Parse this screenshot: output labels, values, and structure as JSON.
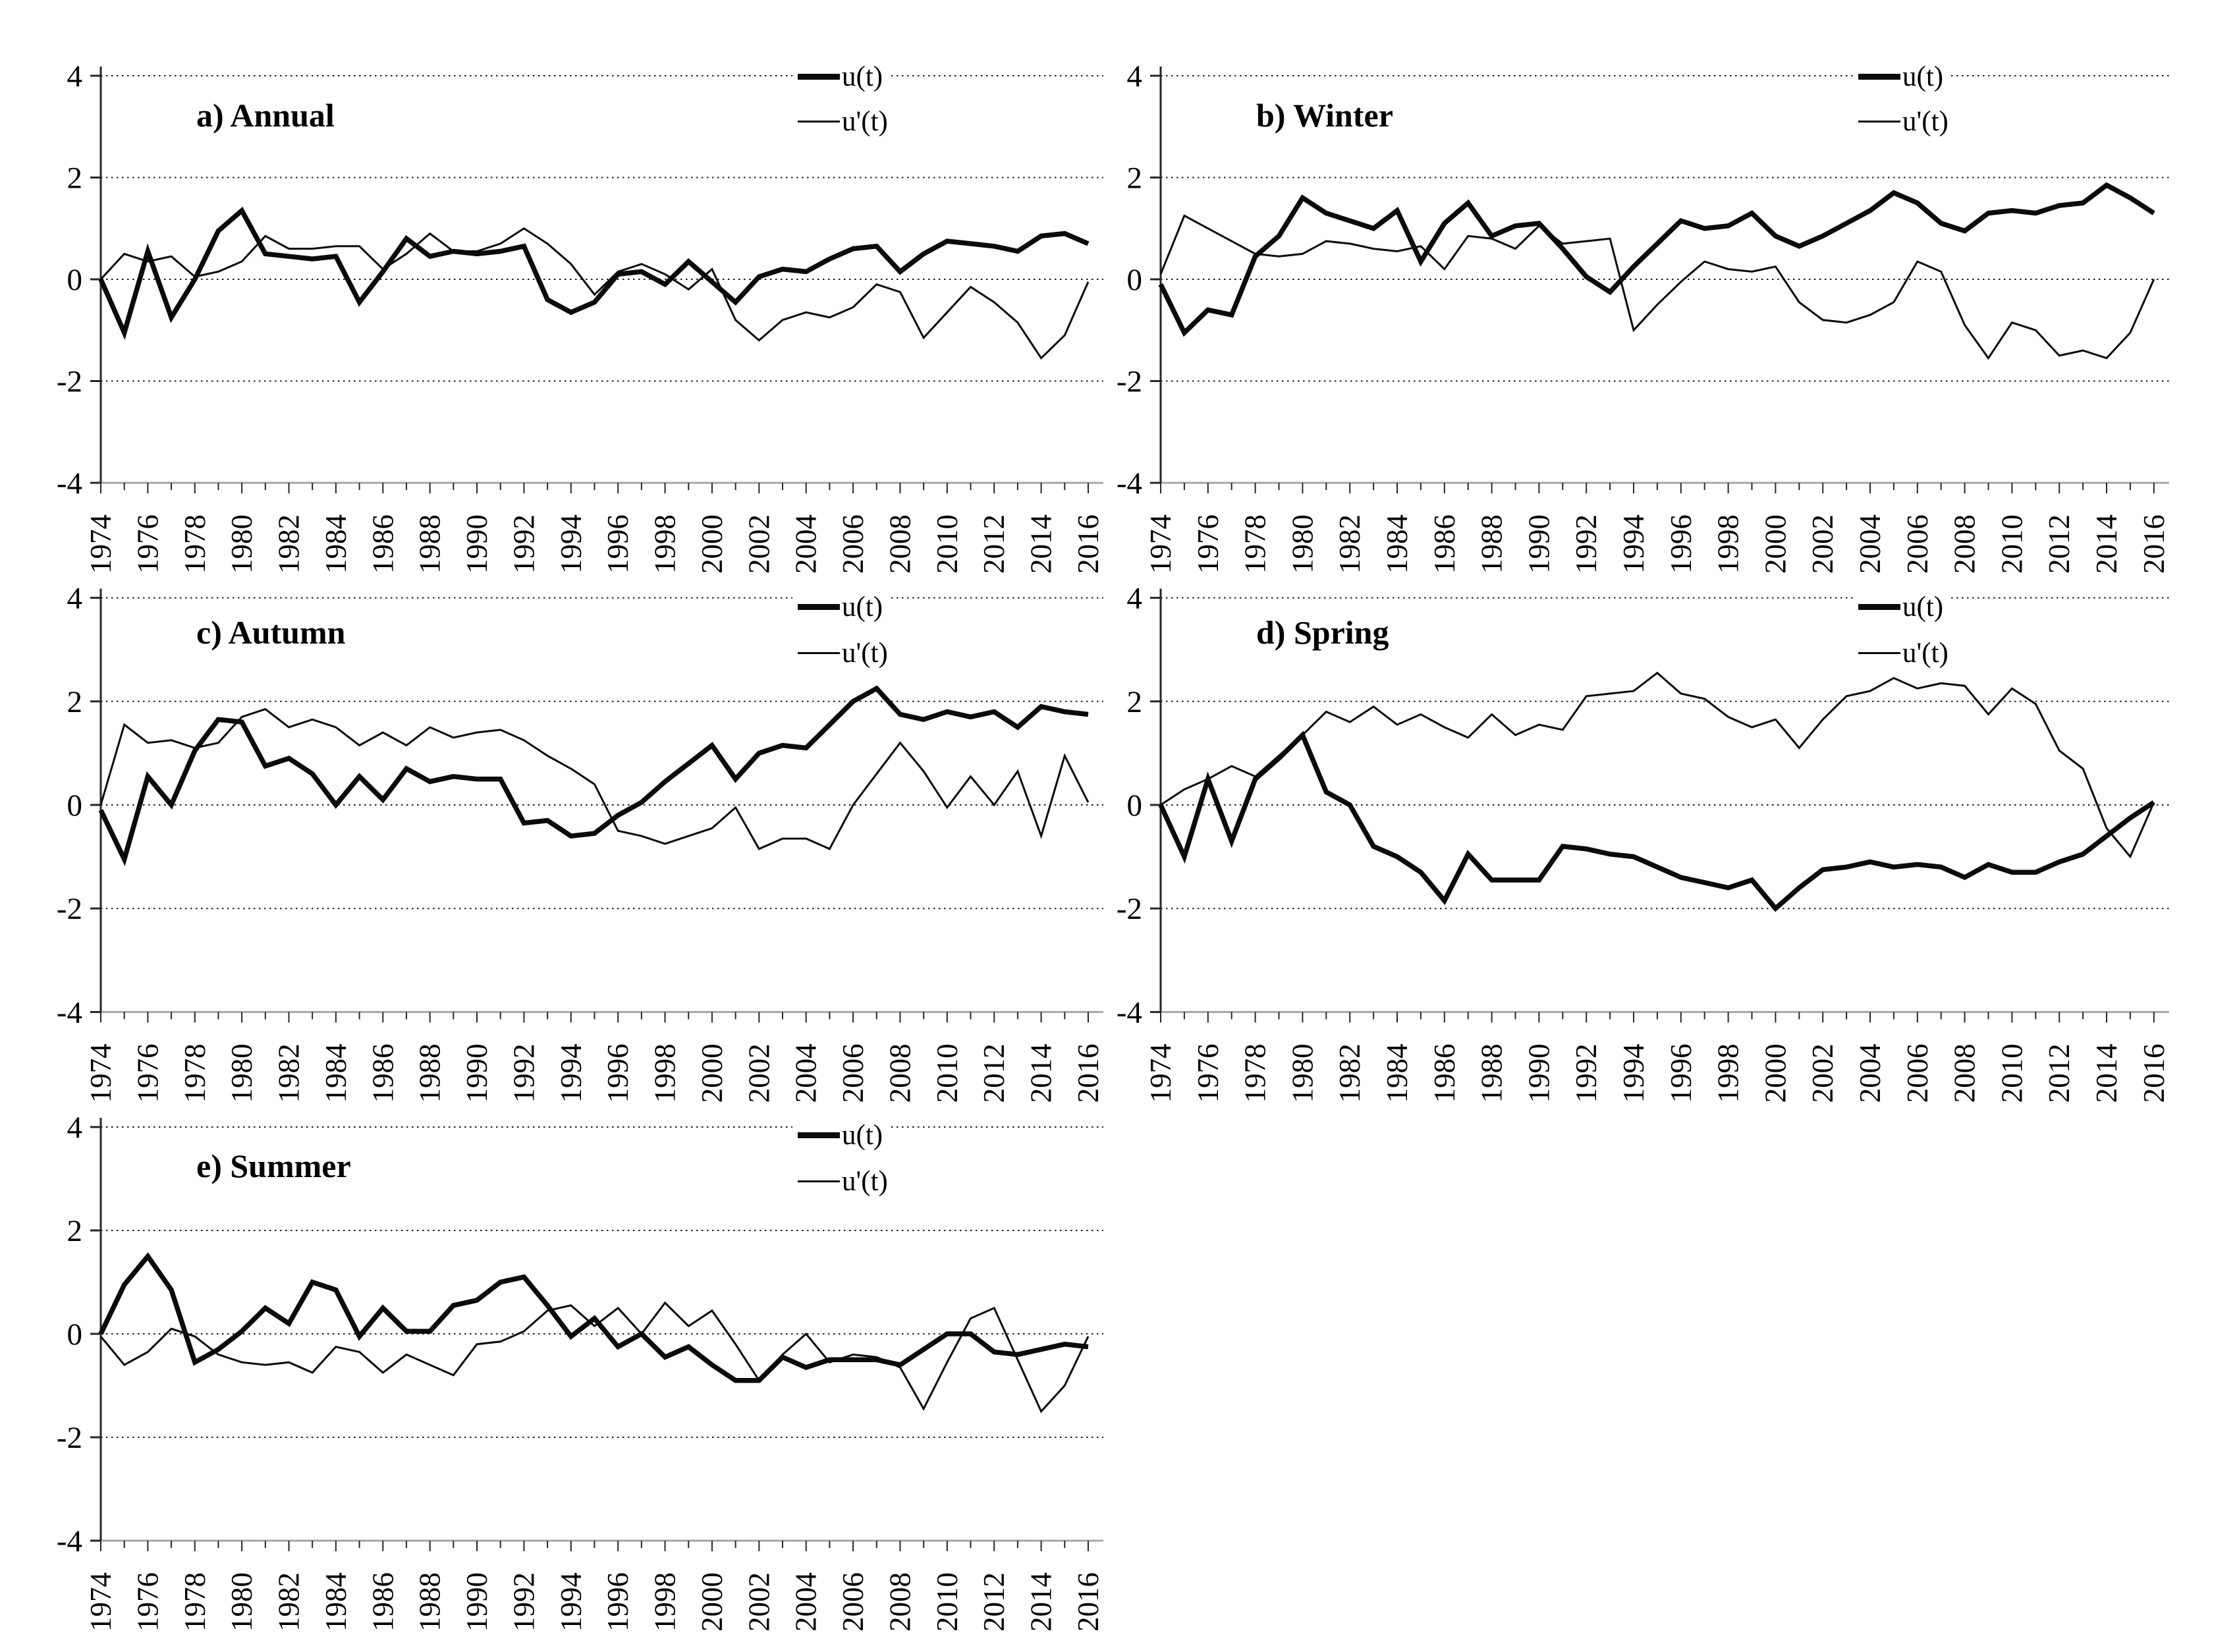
{
  "page": {
    "background": "#ffffff",
    "text_color": "#000000"
  },
  "chart_data": {
    "type": "line",
    "figure_description": "Five panels of standardized anomaly time series, two series per panel",
    "x_range": [
      1974,
      2016
    ],
    "x_step": 1,
    "x_tick_labels": [
      "1974",
      "1976",
      "1978",
      "1980",
      "1982",
      "1984",
      "1986",
      "1988",
      "1990",
      "1992",
      "1994",
      "1996",
      "1998",
      "2000",
      "2002",
      "2004",
      "2006",
      "2008",
      "2010",
      "2012",
      "2014",
      "2016"
    ],
    "ylim": [
      -4,
      4
    ],
    "yticks": [
      4,
      2,
      0,
      -2,
      -4
    ],
    "grid": "horizontal dotted lines at 4, 2, 0, -2; solid gray baseline at -4",
    "legend": [
      "u(t)",
      "u'(t)"
    ],
    "legend_position": "top-center-right of each panel",
    "series_styles": {
      "u(t)": "thick black line",
      "u'(t)": "thin black line"
    },
    "panels": [
      {
        "label": "a) Annual",
        "ut": [
          0,
          -1.05,
          0.55,
          -0.75,
          0,
          0.95,
          1.35,
          0.5,
          0.45,
          0.4,
          0.45,
          -0.45,
          0.15,
          0.8,
          0.45,
          0.55,
          0.5,
          0.55,
          0.65,
          -0.4,
          -0.65,
          -0.45,
          0.1,
          0.15,
          -0.1,
          0.35,
          -0.05,
          -0.45,
          0.05,
          0.2,
          0.15,
          0.4,
          0.6,
          0.65,
          0.15,
          0.5,
          0.75,
          0.7,
          0.65,
          0.55,
          0.85,
          0.9,
          0.7
        ],
        "upt": [
          0,
          0.5,
          0.35,
          0.45,
          0.05,
          0.15,
          0.35,
          0.85,
          0.6,
          0.6,
          0.65,
          0.65,
          0.2,
          0.5,
          0.9,
          0.55,
          0.55,
          0.7,
          1,
          0.7,
          0.3,
          -0.3,
          0.15,
          0.3,
          0.1,
          -0.2,
          0.2,
          -0.8,
          -1.2,
          -0.8,
          -0.65,
          -0.75,
          -0.55,
          -0.1,
          -0.25,
          -1.15,
          -0.65,
          -0.15,
          -0.45,
          -0.85,
          -1.55,
          -1.1,
          -0.05
        ]
      },
      {
        "label": "b) Winter",
        "ut": [
          -0.1,
          -1.05,
          -0.6,
          -0.7,
          0.45,
          0.85,
          1.6,
          1.3,
          1.15,
          1,
          1.35,
          0.35,
          1.1,
          1.5,
          0.85,
          1.05,
          1.1,
          0.6,
          0.05,
          -0.25,
          0.25,
          0.7,
          1.15,
          1,
          1.05,
          1.3,
          0.85,
          0.65,
          0.85,
          1.1,
          1.35,
          1.7,
          1.5,
          1.1,
          0.95,
          1.3,
          1.35,
          1.3,
          1.45,
          1.5,
          1.85,
          1.6,
          1.3
        ],
        "upt": [
          0.1,
          1.25,
          1,
          0.75,
          0.5,
          0.45,
          0.5,
          0.75,
          0.7,
          0.6,
          0.55,
          0.65,
          0.2,
          0.85,
          0.8,
          0.6,
          1.05,
          0.7,
          0.75,
          0.8,
          -1,
          -0.5,
          -0.05,
          0.35,
          0.2,
          0.15,
          0.25,
          -0.45,
          -0.8,
          -0.85,
          -0.7,
          -0.45,
          0.35,
          0.15,
          -0.9,
          -1.55,
          -0.85,
          -1,
          -1.5,
          -1.4,
          -1.55,
          -1.05,
          0
        ]
      },
      {
        "label": "c) Autumn",
        "ut": [
          -0.1,
          -1.05,
          0.55,
          0,
          1.05,
          1.65,
          1.6,
          0.75,
          0.9,
          0.6,
          0,
          0.55,
          0.1,
          0.7,
          0.45,
          0.55,
          0.5,
          0.5,
          -0.35,
          -0.3,
          -0.6,
          -0.55,
          -0.2,
          0.05,
          0.45,
          0.8,
          1.15,
          0.5,
          1,
          1.15,
          1.1,
          1.55,
          2,
          2.25,
          1.75,
          1.65,
          1.8,
          1.7,
          1.8,
          1.5,
          1.9,
          1.8,
          1.75
        ],
        "upt": [
          0,
          1.55,
          1.2,
          1.25,
          1.1,
          1.2,
          1.7,
          1.85,
          1.5,
          1.65,
          1.5,
          1.15,
          1.4,
          1.15,
          1.5,
          1.3,
          1.4,
          1.45,
          1.25,
          0.95,
          0.7,
          0.4,
          -0.5,
          -0.6,
          -0.75,
          -0.6,
          -0.45,
          -0.05,
          -0.85,
          -0.65,
          -0.65,
          -0.85,
          0,
          0.6,
          1.2,
          0.65,
          -0.05,
          0.55,
          0,
          0.65,
          -0.6,
          0.95,
          0.05
        ]
      },
      {
        "label": "d) Spring",
        "ut": [
          0,
          -1,
          0.5,
          -0.7,
          0.5,
          0.9,
          1.35,
          0.25,
          0,
          -0.8,
          -1,
          -1.3,
          -1.85,
          -0.95,
          -1.45,
          -1.45,
          -1.45,
          -0.8,
          -0.85,
          -0.95,
          -1,
          -1.2,
          -1.4,
          -1.5,
          -1.6,
          -1.45,
          -2,
          -1.6,
          -1.25,
          -1.2,
          -1.1,
          -1.2,
          -1.15,
          -1.2,
          -1.4,
          -1.15,
          -1.3,
          -1.3,
          -1.1,
          -0.95,
          -0.6,
          -0.25,
          0.05
        ],
        "upt": [
          0,
          0.3,
          0.5,
          0.75,
          0.55,
          0.95,
          1.35,
          1.8,
          1.6,
          1.9,
          1.55,
          1.75,
          1.5,
          1.3,
          1.75,
          1.35,
          1.55,
          1.45,
          2.1,
          2.15,
          2.2,
          2.55,
          2.15,
          2.05,
          1.7,
          1.5,
          1.65,
          1.1,
          1.65,
          2.1,
          2.2,
          2.45,
          2.25,
          2.35,
          2.3,
          1.75,
          2.25,
          1.95,
          1.05,
          0.7,
          -0.45,
          -1,
          0.05
        ]
      },
      {
        "label": "e) Summer",
        "ut": [
          0,
          0.95,
          1.5,
          0.85,
          -0.55,
          -0.3,
          0.05,
          0.5,
          0.2,
          1,
          0.85,
          -0.05,
          0.5,
          0.05,
          0.05,
          0.55,
          0.65,
          1,
          1.1,
          0.55,
          -0.05,
          0.3,
          -0.25,
          0,
          -0.45,
          -0.25,
          -0.6,
          -0.9,
          -0.9,
          -0.45,
          -0.65,
          -0.5,
          -0.5,
          -0.5,
          -0.6,
          -0.3,
          0,
          0,
          -0.35,
          -0.4,
          -0.3,
          -0.2,
          -0.25
        ],
        "upt": [
          -0.05,
          -0.6,
          -0.35,
          0.1,
          -0.05,
          -0.4,
          -0.55,
          -0.6,
          -0.55,
          -0.75,
          -0.25,
          -0.35,
          -0.75,
          -0.4,
          -0.6,
          -0.8,
          -0.2,
          -0.15,
          0.05,
          0.45,
          0.55,
          0.15,
          0.5,
          0,
          0.6,
          0.15,
          0.45,
          -0.2,
          -0.9,
          -0.4,
          0,
          -0.55,
          -0.4,
          -0.45,
          -0.65,
          -1.45,
          -0.55,
          0.3,
          0.5,
          -0.5,
          -1.5,
          -1,
          -0.05
        ]
      }
    ]
  }
}
